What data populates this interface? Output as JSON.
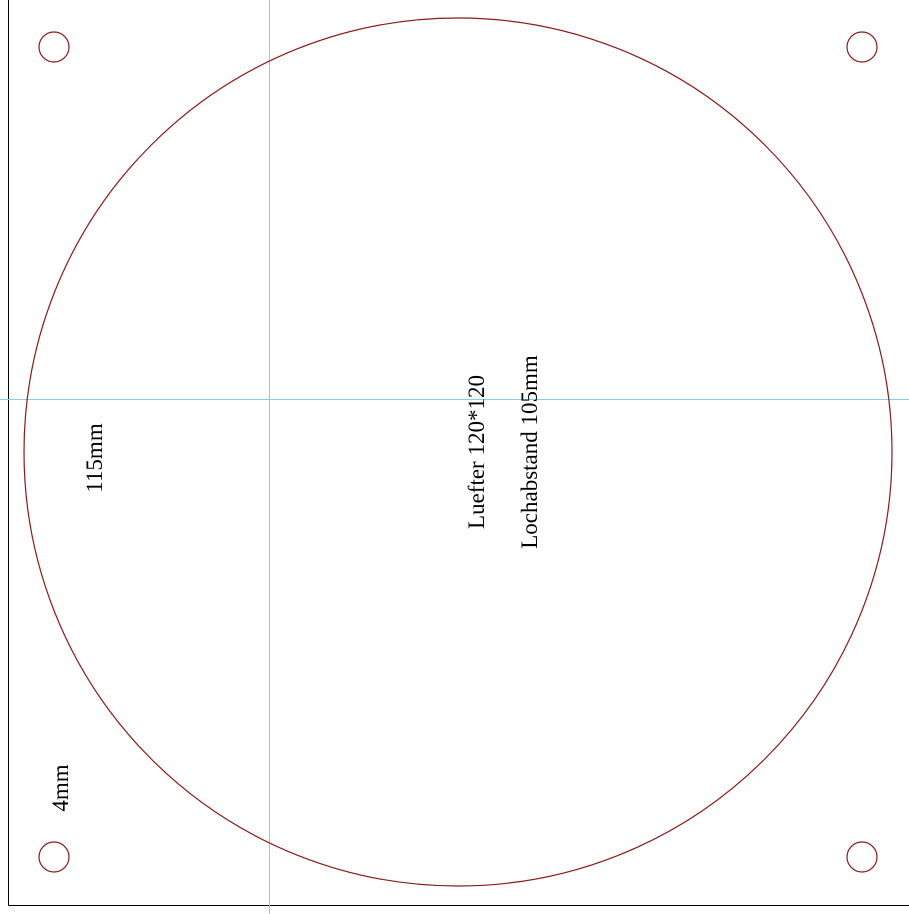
{
  "drawing": {
    "labels": {
      "fan": "Luefter 120*120",
      "hole_spacing": "Lochabstand 105mm",
      "diameter": "115mm",
      "hole_size": "4mm"
    },
    "colors": {
      "outline": "#000000",
      "cut_lines": "#8b1a1a",
      "guide_lines": "#87ceeb",
      "text": "#000000",
      "background": "#ffffff"
    }
  }
}
